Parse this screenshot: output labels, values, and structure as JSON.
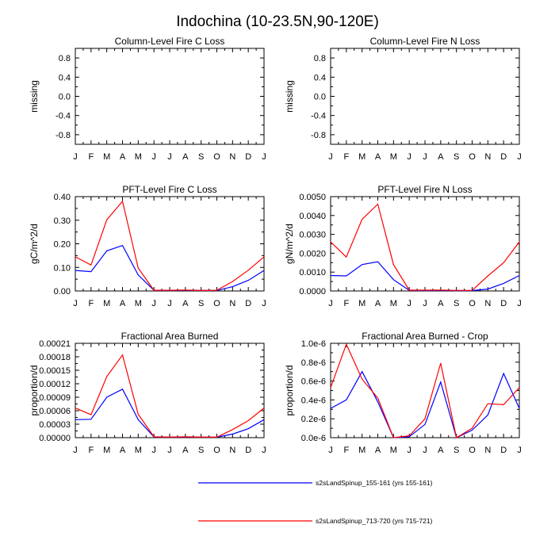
{
  "title": "Indochina (10-23.5N,90-120E)",
  "colors": {
    "blue": "#0000ff",
    "red": "#ff0000"
  },
  "legend": [
    {
      "label": "s2sLandSpinup_155-161 (yrs 155-161)",
      "color": "#0000ff"
    },
    {
      "label": "s2sLandSpinup_713-720 (yrs 715-721)",
      "color": "#ff0000"
    }
  ],
  "chart_data": [
    {
      "type": "line",
      "title": "Column-Level Fire C Loss",
      "ylabel": "missing",
      "categories": [
        "J",
        "F",
        "M",
        "A",
        "M",
        "J",
        "J",
        "A",
        "S",
        "O",
        "N",
        "D",
        "J"
      ],
      "ylim": [
        -1,
        1
      ],
      "yticks": [
        -0.8,
        -0.4,
        0.0,
        0.4,
        0.8
      ],
      "ytick_labels": [
        "-0.8",
        "-0.4",
        "0.0",
        "0.4",
        "0.8"
      ],
      "series": []
    },
    {
      "type": "line",
      "title": "Column-Level Fire N Loss",
      "ylabel": "missing",
      "categories": [
        "J",
        "F",
        "M",
        "A",
        "M",
        "J",
        "J",
        "A",
        "S",
        "O",
        "N",
        "D",
        "J"
      ],
      "ylim": [
        -1,
        1
      ],
      "yticks": [
        -0.8,
        -0.4,
        0.0,
        0.4,
        0.8
      ],
      "ytick_labels": [
        "-0.8",
        "-0.4",
        "0.0",
        "0.4",
        "0.8"
      ],
      "series": []
    },
    {
      "type": "line",
      "title": "PFT-Level Fire C Loss",
      "ylabel": "gC/m^2/d",
      "categories": [
        "J",
        "F",
        "M",
        "A",
        "M",
        "J",
        "J",
        "A",
        "S",
        "O",
        "N",
        "D",
        "J"
      ],
      "ylim": [
        0,
        0.4
      ],
      "yticks": [
        0,
        0.1,
        0.2,
        0.3,
        0.4
      ],
      "ytick_labels": [
        "0.00",
        "0.10",
        "0.20",
        "0.30",
        "0.40"
      ],
      "series": [
        {
          "name": "s2sLandSpinup_155-161",
          "color": "#0000ff",
          "values": [
            0.087,
            0.082,
            0.17,
            0.193,
            0.068,
            0.003,
            0.002,
            0.003,
            0.002,
            0.002,
            0.018,
            0.045,
            0.087
          ]
        },
        {
          "name": "s2sLandSpinup_713-720",
          "color": "#ff0000",
          "values": [
            0.145,
            0.11,
            0.302,
            0.38,
            0.097,
            0.003,
            0.003,
            0.004,
            0.002,
            0.003,
            0.04,
            0.088,
            0.145
          ]
        }
      ]
    },
    {
      "type": "line",
      "title": "PFT-Level Fire N Loss",
      "ylabel": "gN/m^2/d",
      "categories": [
        "J",
        "F",
        "M",
        "A",
        "M",
        "J",
        "J",
        "A",
        "S",
        "O",
        "N",
        "D",
        "J"
      ],
      "ylim": [
        0,
        0.005
      ],
      "yticks": [
        0,
        0.001,
        0.002,
        0.003,
        0.004,
        0.005
      ],
      "ytick_labels": [
        "0.0000",
        "0.0010",
        "0.0020",
        "0.0030",
        "0.0040",
        "0.0050"
      ],
      "series": [
        {
          "name": "s2sLandSpinup_155-161",
          "color": "#0000ff",
          "values": [
            0.00082,
            0.0008,
            0.0014,
            0.00155,
            0.0006,
            3e-05,
            2e-05,
            3e-05,
            2e-05,
            2e-05,
            0.0001,
            0.0004,
            0.00082
          ]
        },
        {
          "name": "s2sLandSpinup_713-720",
          "color": "#ff0000",
          "values": [
            0.0026,
            0.0018,
            0.0038,
            0.0046,
            0.0014,
            4e-05,
            4e-05,
            5e-05,
            3e-05,
            3e-05,
            0.0008,
            0.0015,
            0.0026
          ]
        }
      ]
    },
    {
      "type": "line",
      "title": "Fractional Area Burned",
      "ylabel": "proportion/d",
      "categories": [
        "J",
        "F",
        "M",
        "A",
        "M",
        "J",
        "J",
        "A",
        "S",
        "O",
        "N",
        "D",
        "J"
      ],
      "ylim": [
        0,
        0.00021
      ],
      "yticks": [
        0,
        3e-05,
        6e-05,
        9e-05,
        0.00012,
        0.00015,
        0.00018,
        0.00021
      ],
      "ytick_labels": [
        "0.00000",
        "0.00003",
        "0.00006",
        "0.00009",
        "0.00012",
        "0.00015",
        "0.00018",
        "0.00021"
      ],
      "series": [
        {
          "name": "s2sLandSpinup_155-161",
          "color": "#0000ff",
          "values": [
            4e-05,
            4.1e-05,
            9e-05,
            0.000108,
            4e-05,
            1.5e-06,
            1e-06,
            1.5e-06,
            1e-06,
            1e-06,
            8e-06,
            2e-05,
            4e-05
          ]
        },
        {
          "name": "s2sLandSpinup_713-720",
          "color": "#ff0000",
          "values": [
            6.6e-05,
            5.1e-05,
            0.000136,
            0.000184,
            5.2e-05,
            2e-06,
            1e-06,
            2e-06,
            1e-06,
            1e-06,
            1.8e-05,
            3.8e-05,
            6.6e-05
          ]
        }
      ]
    },
    {
      "type": "line",
      "title": "Fractional Area Burned - Crop",
      "ylabel": "proportion/d",
      "categories": [
        "J",
        "F",
        "M",
        "A",
        "M",
        "J",
        "J",
        "A",
        "S",
        "O",
        "N",
        "D",
        "J"
      ],
      "ylim": [
        0,
        1.0
      ],
      "yticks": [
        0,
        0.2,
        0.4,
        0.6,
        0.8,
        1.0
      ],
      "ytick_labels": [
        "0.0e-6",
        "0.2e-6",
        "0.4e-6",
        "0.6e-6",
        "0.8e-6",
        "1.0e-6"
      ],
      "value_unit": "1e-6",
      "series": [
        {
          "name": "s2sLandSpinup_155-161",
          "color": "#0000ff",
          "values": [
            0.31,
            0.4,
            0.7,
            0.38,
            0.0,
            0.01,
            0.14,
            0.59,
            0.0,
            0.08,
            0.24,
            0.68,
            0.31
          ]
        },
        {
          "name": "s2sLandSpinup_713-720",
          "color": "#ff0000",
          "values": [
            0.53,
            0.99,
            0.62,
            0.42,
            0.0,
            0.02,
            0.2,
            0.79,
            0.0,
            0.1,
            0.36,
            0.35,
            0.53
          ]
        }
      ]
    }
  ]
}
